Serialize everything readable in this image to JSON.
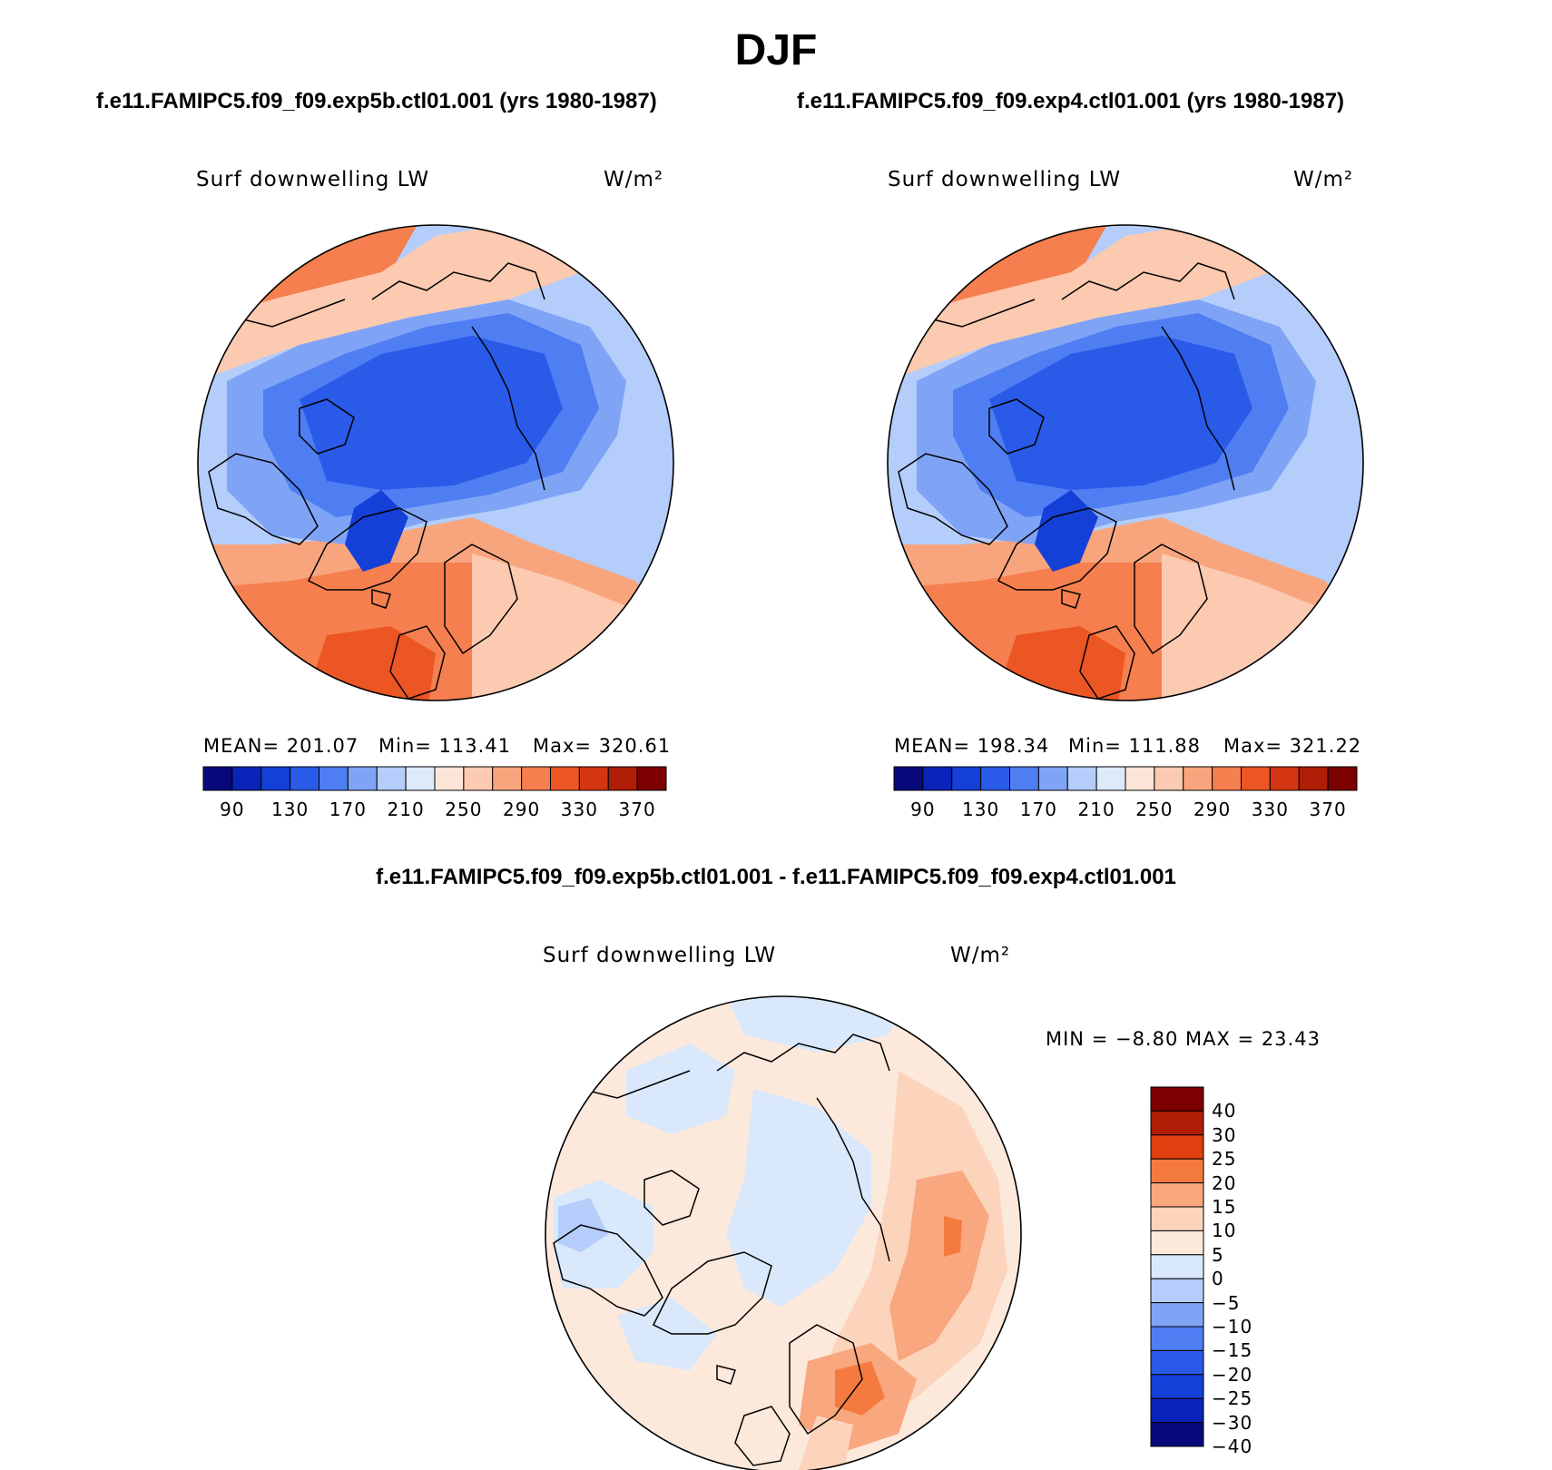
{
  "title": "DJF",
  "panels": [
    {
      "case": "f.e11.FAMIPC5.f09_f09.exp5b.ctl01.001 (yrs 1980-1987)",
      "variable": "Surf downwelling LW",
      "units": "W/m²",
      "mean_text": "MEAN= 201.07",
      "min_text": "Min= 113.41",
      "max_text": "Max= 320.61"
    },
    {
      "case": "f.e11.FAMIPC5.f09_f09.exp4.ctl01.001 (yrs 1980-1987)",
      "variable": "Surf downwelling LW",
      "units": "W/m²",
      "mean_text": "MEAN= 198.34",
      "min_text": "Min= 111.88",
      "max_text": "Max= 321.22"
    }
  ],
  "difference": {
    "title": "f.e11.FAMIPC5.f09_f09.exp5b.ctl01.001 - f.e11.FAMIPC5.f09_f09.exp4.ctl01.001",
    "variable": "Surf downwelling LW",
    "units": "W/m²",
    "minmax_text": "MIN =   −8.80 MAX =   23.43"
  },
  "abs_colorbar": {
    "colors": [
      "#08087a",
      "#0a23b8",
      "#1440d8",
      "#2a5ae8",
      "#4f7ef2",
      "#7fa4f6",
      "#b4cdfa",
      "#dceafc",
      "#fde6d8",
      "#fccab0",
      "#f8a57e",
      "#f57f4e",
      "#ec5524",
      "#d43512",
      "#b01d06",
      "#7d0000"
    ],
    "tick_labels": [
      "90",
      "130",
      "170",
      "210",
      "250",
      "290",
      "330",
      "370"
    ]
  },
  "diff_colorbar": {
    "colors": [
      "#7d0000",
      "#b01d06",
      "#e0400f",
      "#f57a40",
      "#f9a77e",
      "#fcd3bb",
      "#fde9dc",
      "#d9e8fb",
      "#b4cdfa",
      "#7fa4f6",
      "#4f7ef2",
      "#2a5ae8",
      "#1440d8",
      "#0a23b8",
      "#08087a"
    ],
    "tick_labels": [
      "40",
      "30",
      "25",
      "20",
      "15",
      "10",
      "5",
      "0",
      "−5",
      "−10",
      "−15",
      "−20",
      "−25",
      "−30",
      "−40"
    ]
  }
}
